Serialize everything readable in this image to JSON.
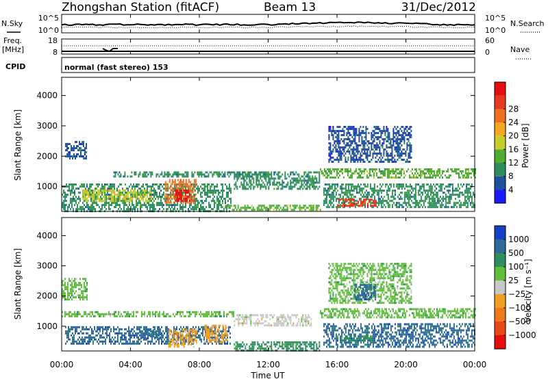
{
  "header": {
    "station": "Zhongshan Station (fitACF)",
    "beam": "Beam 13",
    "date": "31/Dec/2012"
  },
  "strip_labels": {
    "nsky": "N.Sky",
    "nsearch": "N.Search",
    "freq_line1": "Freq.",
    "freq_line2": "[MHz]",
    "nave": "Nave",
    "cpid": "CPID",
    "cpid_value": "normal (fast stereo) 153",
    "noise_top": "10^5",
    "noise_bottom": "10^0",
    "freq_top": "18",
    "freq_bottom": "8",
    "nave_top": "60",
    "nave_bottom": "0"
  },
  "axes": {
    "xlabel": "Time UT",
    "ylabel": "Slant Range [km]",
    "xticks": [
      "00:00",
      "04:00",
      "08:00",
      "12:00",
      "16:00",
      "20:00",
      "00:00"
    ],
    "yticks": [
      "1000",
      "2000",
      "3000",
      "4000"
    ]
  },
  "colorbars": {
    "power_label": "Power [dB]",
    "power_ticks": [
      "4",
      "8",
      "12",
      "16",
      "20",
      "24",
      "28"
    ],
    "velocity_label": "Velocity [m s⁻¹]",
    "velocity_ticks": [
      "1000",
      "500",
      "100",
      "25",
      "−25",
      "−100",
      "−500",
      "−1000"
    ]
  },
  "colors": {
    "power_scale": [
      "#1a1aff",
      "#2050a0",
      "#2e8f5e",
      "#4fae2f",
      "#c7cd2a",
      "#f5a623",
      "#f07020",
      "#e53a1e",
      "#e50d0d"
    ],
    "velocity_scale": [
      "#1540c8",
      "#2f6a9a",
      "#2e8f5e",
      "#5fbf3c",
      "#c8c8c8",
      "#f0a020",
      "#f07818",
      "#e84818",
      "#e50d0d"
    ]
  },
  "chart_data": [
    {
      "type": "heatmap",
      "title": "Power",
      "xlabel": "Time UT",
      "ylabel": "Slant Range [km]",
      "xlim": [
        0,
        24
      ],
      "ylim": [
        180,
        4600
      ],
      "clim": [
        0,
        30
      ],
      "unit": "dB",
      "regions": [
        {
          "t0": 0.0,
          "t1": 9.8,
          "r0": 200,
          "r1": 1100,
          "value": 9
        },
        {
          "t0": 1.2,
          "t1": 5.2,
          "r0": 500,
          "r1": 900,
          "value": 16
        },
        {
          "t0": 6.0,
          "t1": 7.8,
          "r0": 500,
          "r1": 1250,
          "value": 22
        },
        {
          "t0": 6.6,
          "t1": 7.4,
          "r0": 550,
          "r1": 900,
          "value": 28
        },
        {
          "t0": 3.0,
          "t1": 12.0,
          "r0": 1350,
          "r1": 1500,
          "value": 7
        },
        {
          "t0": 0.2,
          "t1": 1.4,
          "r0": 1900,
          "r1": 2500,
          "value": 6
        },
        {
          "t0": 10.0,
          "t1": 15.0,
          "r0": 900,
          "r1": 1500,
          "value": 7
        },
        {
          "t0": 15.0,
          "t1": 24.0,
          "r0": 1300,
          "r1": 1600,
          "value": 12
        },
        {
          "t0": 15.5,
          "t1": 20.3,
          "r0": 1800,
          "r1": 3000,
          "value": 5
        },
        {
          "t0": 15.2,
          "t1": 24.0,
          "r0": 300,
          "r1": 1100,
          "value": 8
        },
        {
          "t0": 16.0,
          "t1": 18.3,
          "r0": 350,
          "r1": 600,
          "value": 26
        },
        {
          "t0": 9.5,
          "t1": 15.0,
          "r0": 200,
          "r1": 400,
          "value": 10
        }
      ]
    },
    {
      "type": "heatmap",
      "title": "Velocity",
      "xlabel": "Time UT",
      "ylabel": "Slant Range [km]",
      "xlim": [
        0,
        24
      ],
      "ylim": [
        180,
        4600
      ],
      "clim": [
        -1000,
        1000
      ],
      "unit": "m s^-1",
      "regions": [
        {
          "t0": 0.2,
          "t1": 9.8,
          "r0": 450,
          "r1": 1000,
          "value": 150
        },
        {
          "t0": 6.2,
          "t1": 7.8,
          "r0": 350,
          "r1": 900,
          "value": -120
        },
        {
          "t0": 8.3,
          "t1": 9.6,
          "r0": 450,
          "r1": 1050,
          "value": -400
        },
        {
          "t0": 4.5,
          "t1": 5.7,
          "r0": 600,
          "r1": 900,
          "value": 300
        },
        {
          "t0": 0.0,
          "t1": 10.0,
          "r0": 1300,
          "r1": 1500,
          "value": 10
        },
        {
          "t0": 0.0,
          "t1": 1.5,
          "r0": 1900,
          "r1": 2600,
          "value": 0
        },
        {
          "t0": 15.0,
          "t1": 24.0,
          "r0": 1300,
          "r1": 1600,
          "value": 5
        },
        {
          "t0": 15.5,
          "t1": 20.3,
          "r0": 1800,
          "r1": 3100,
          "value": 0
        },
        {
          "t0": 17.0,
          "t1": 18.2,
          "r0": 1900,
          "r1": 2400,
          "value": 150
        },
        {
          "t0": 15.2,
          "t1": 24.0,
          "r0": 300,
          "r1": 1100,
          "value": 100
        },
        {
          "t0": 16.0,
          "t1": 18.0,
          "r0": 450,
          "r1": 700,
          "value": 60
        },
        {
          "t0": 10.0,
          "t1": 15.0,
          "r0": 200,
          "r1": 500,
          "value": 80
        },
        {
          "t0": 10.0,
          "t1": 14.5,
          "r0": 1000,
          "r1": 1400,
          "value": -60
        }
      ]
    }
  ]
}
